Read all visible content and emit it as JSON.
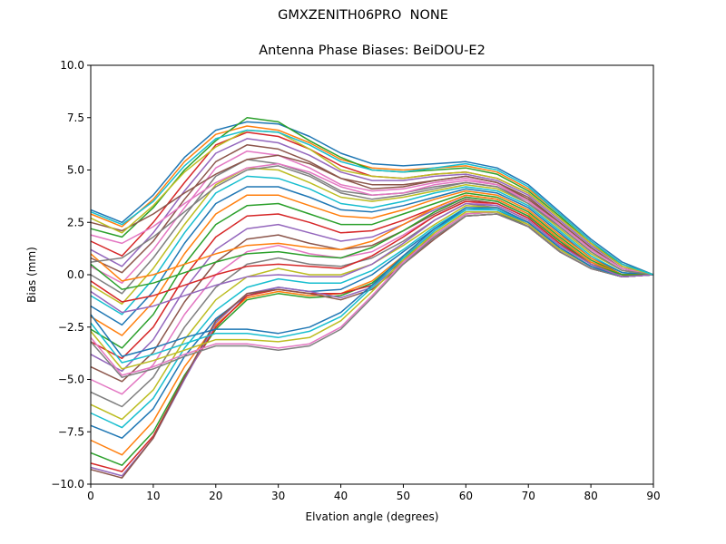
{
  "suptitle": "GMXZENITH06PRO  NONE",
  "chart_data": {
    "type": "line",
    "title": "Antenna Phase Biases: BeiDOU-E2",
    "xlabel": "Elvation angle (degrees)",
    "ylabel": "Bias (mm)",
    "xlim": [
      0,
      90
    ],
    "ylim": [
      -10,
      10
    ],
    "xticks": [
      0,
      10,
      20,
      30,
      40,
      50,
      60,
      70,
      80,
      90
    ],
    "xtick_labels": [
      "0",
      "10",
      "20",
      "30",
      "40",
      "50",
      "60",
      "70",
      "80",
      "90"
    ],
    "yticks": [
      -10,
      -7.5,
      -5,
      -2.5,
      0,
      2.5,
      5,
      7.5,
      10
    ],
    "ytick_labels": [
      "−10.0",
      "−7.5",
      "−5.0",
      "−2.5",
      "0.0",
      "2.5",
      "5.0",
      "7.5",
      "10.0"
    ],
    "grid": false,
    "legend": "none",
    "x": [
      0,
      5,
      10,
      15,
      20,
      25,
      30,
      35,
      40,
      45,
      50,
      55,
      60,
      65,
      70,
      75,
      80,
      85,
      90
    ],
    "series": [
      {
        "color": "#1f77b4",
        "values": [
          3.1,
          2.5,
          3.8,
          5.6,
          6.9,
          7.3,
          7.2,
          6.6,
          5.8,
          5.3,
          5.2,
          5.3,
          5.4,
          5.1,
          4.3,
          3.0,
          1.7,
          0.6,
          0.0
        ]
      },
      {
        "color": "#ff7f0e",
        "values": [
          2.9,
          2.3,
          3.6,
          5.4,
          6.7,
          7.1,
          6.9,
          6.3,
          5.5,
          5.1,
          5.0,
          5.1,
          5.2,
          4.9,
          4.1,
          2.9,
          1.6,
          0.5,
          0.0
        ]
      },
      {
        "color": "#2ca02c",
        "values": [
          2.2,
          1.8,
          3.2,
          5.0,
          6.4,
          7.5,
          7.3,
          6.4,
          5.6,
          5.0,
          4.9,
          5.0,
          5.1,
          4.8,
          4.0,
          2.8,
          1.5,
          0.5,
          0.0
        ]
      },
      {
        "color": "#d62728",
        "values": [
          1.6,
          0.9,
          2.5,
          4.4,
          6.2,
          6.8,
          6.6,
          6.0,
          5.2,
          4.7,
          4.6,
          4.8,
          4.9,
          4.6,
          3.9,
          2.7,
          1.5,
          0.4,
          0.0
        ]
      },
      {
        "color": "#9467bd",
        "values": [
          1.2,
          0.4,
          2.0,
          4.0,
          5.8,
          6.5,
          6.3,
          5.7,
          4.9,
          4.5,
          4.5,
          4.7,
          4.8,
          4.5,
          3.8,
          2.6,
          1.4,
          0.4,
          0.0
        ]
      },
      {
        "color": "#8c564b",
        "values": [
          0.8,
          0.1,
          1.6,
          3.6,
          5.4,
          6.2,
          6.0,
          5.4,
          4.6,
          4.3,
          4.3,
          4.5,
          4.7,
          4.4,
          3.7,
          2.5,
          1.3,
          0.3,
          0.0
        ]
      },
      {
        "color": "#e377c2",
        "values": [
          0.4,
          -0.4,
          1.2,
          3.2,
          5.1,
          5.9,
          5.7,
          5.1,
          4.3,
          4.0,
          4.1,
          4.4,
          4.6,
          4.3,
          3.6,
          2.4,
          1.2,
          0.3,
          0.0
        ]
      },
      {
        "color": "#7f7f7f",
        "values": [
          0.0,
          -0.9,
          0.8,
          2.8,
          4.7,
          5.5,
          5.3,
          4.8,
          4.0,
          3.8,
          3.9,
          4.2,
          4.4,
          4.2,
          3.5,
          2.3,
          1.1,
          0.2,
          0.0
        ]
      },
      {
        "color": "#bcbd22",
        "values": [
          -0.5,
          -1.4,
          0.3,
          2.4,
          4.3,
          5.1,
          5.0,
          4.4,
          3.7,
          3.5,
          3.7,
          4.0,
          4.3,
          4.1,
          3.4,
          2.2,
          1.0,
          0.2,
          0.0
        ]
      },
      {
        "color": "#17becf",
        "values": [
          -1.0,
          -1.9,
          -0.2,
          2.0,
          3.9,
          4.7,
          4.6,
          4.1,
          3.4,
          3.2,
          3.5,
          3.9,
          4.2,
          4.0,
          3.3,
          2.1,
          0.9,
          0.1,
          0.0
        ]
      },
      {
        "color": "#1f77b4",
        "values": [
          -1.5,
          -2.4,
          -0.8,
          1.5,
          3.4,
          4.2,
          4.2,
          3.7,
          3.1,
          3.0,
          3.3,
          3.7,
          4.1,
          3.9,
          3.2,
          2.0,
          0.8,
          0.1,
          0.0
        ]
      },
      {
        "color": "#ff7f0e",
        "values": [
          -2.0,
          -2.9,
          -1.3,
          1.0,
          2.9,
          3.8,
          3.8,
          3.3,
          2.8,
          2.7,
          3.1,
          3.6,
          4.0,
          3.8,
          3.1,
          1.9,
          0.8,
          0.0,
          0.0
        ]
      },
      {
        "color": "#2ca02c",
        "values": [
          -2.6,
          -3.5,
          -1.9,
          0.5,
          2.4,
          3.3,
          3.4,
          2.9,
          2.4,
          2.4,
          2.9,
          3.4,
          3.9,
          3.7,
          3.0,
          1.8,
          0.7,
          0.0,
          0.0
        ]
      },
      {
        "color": "#d62728",
        "values": [
          -3.2,
          -4.0,
          -2.5,
          -0.1,
          1.8,
          2.8,
          2.9,
          2.5,
          2.0,
          2.1,
          2.6,
          3.2,
          3.8,
          3.6,
          2.9,
          1.7,
          0.6,
          0.0,
          0.0
        ]
      },
      {
        "color": "#9467bd",
        "values": [
          -3.8,
          -4.6,
          -3.1,
          -0.7,
          1.2,
          2.2,
          2.4,
          2.0,
          1.6,
          1.8,
          2.4,
          3.1,
          3.7,
          3.5,
          2.8,
          1.6,
          0.6,
          -0.1,
          0.0
        ]
      },
      {
        "color": "#8c564b",
        "values": [
          -4.4,
          -5.1,
          -3.7,
          -1.3,
          0.6,
          1.7,
          1.9,
          1.5,
          1.2,
          1.4,
          2.1,
          2.9,
          3.6,
          3.4,
          2.7,
          1.5,
          0.5,
          -0.1,
          0.0
        ]
      },
      {
        "color": "#e377c2",
        "values": [
          -5.0,
          -5.7,
          -4.3,
          -1.9,
          0.0,
          1.1,
          1.4,
          1.0,
          0.8,
          1.1,
          1.9,
          2.8,
          3.5,
          3.3,
          2.6,
          1.4,
          0.5,
          -0.1,
          0.0
        ]
      },
      {
        "color": "#7f7f7f",
        "values": [
          -5.6,
          -6.3,
          -4.9,
          -2.5,
          -0.6,
          0.5,
          0.8,
          0.5,
          0.4,
          0.8,
          1.6,
          2.6,
          3.4,
          3.2,
          2.5,
          1.3,
          0.4,
          -0.1,
          0.0
        ]
      },
      {
        "color": "#bcbd22",
        "values": [
          -6.2,
          -6.9,
          -5.5,
          -3.1,
          -1.2,
          -0.1,
          0.3,
          0.0,
          0.0,
          0.5,
          1.4,
          2.4,
          3.3,
          3.2,
          2.5,
          1.3,
          0.4,
          -0.1,
          0.0
        ]
      },
      {
        "color": "#17becf",
        "values": [
          -6.6,
          -7.3,
          -5.9,
          -3.5,
          -1.7,
          -0.6,
          -0.2,
          -0.4,
          -0.4,
          0.2,
          1.2,
          2.3,
          3.2,
          3.1,
          2.4,
          1.2,
          0.4,
          -0.1,
          0.0
        ]
      },
      {
        "color": "#1f77b4",
        "values": [
          -7.2,
          -7.8,
          -6.4,
          -3.9,
          -2.1,
          -1.0,
          -0.6,
          -0.8,
          -0.7,
          0.0,
          1.1,
          2.2,
          3.1,
          3.1,
          2.4,
          1.2,
          0.4,
          -0.1,
          0.0
        ]
      },
      {
        "color": "#ff7f0e",
        "values": [
          -7.9,
          -8.6,
          -7.0,
          -4.4,
          -2.4,
          -1.1,
          -0.8,
          -1.0,
          -0.9,
          -0.3,
          0.9,
          2.0,
          3.0,
          3.0,
          2.3,
          1.1,
          0.3,
          -0.1,
          0.0
        ]
      },
      {
        "color": "#2ca02c",
        "values": [
          -8.5,
          -9.1,
          -7.5,
          -4.8,
          -2.6,
          -1.2,
          -0.9,
          -1.1,
          -1.0,
          -0.4,
          0.8,
          1.9,
          2.9,
          3.0,
          2.3,
          1.1,
          0.3,
          -0.1,
          0.0
        ]
      },
      {
        "color": "#d62728",
        "values": [
          -9.0,
          -9.4,
          -7.7,
          -4.9,
          -2.5,
          -1.0,
          -0.7,
          -0.9,
          -0.9,
          -0.5,
          0.7,
          1.8,
          2.8,
          2.9,
          2.3,
          1.1,
          0.3,
          -0.1,
          0.0
        ]
      },
      {
        "color": "#9467bd",
        "values": [
          -9.2,
          -9.6,
          -7.8,
          -5.0,
          -2.3,
          -0.9,
          -0.6,
          -0.8,
          -1.1,
          -0.6,
          0.6,
          1.8,
          2.8,
          2.9,
          2.3,
          1.1,
          0.3,
          -0.1,
          0.0
        ]
      },
      {
        "color": "#8c564b",
        "values": [
          -9.3,
          -9.7,
          -7.8,
          -4.9,
          -2.2,
          -0.9,
          -0.7,
          -0.9,
          -1.2,
          -0.7,
          0.5,
          1.7,
          2.8,
          2.9,
          2.3,
          1.1,
          0.3,
          -0.1,
          0.0
        ]
      },
      {
        "color": "#e377c2",
        "values": [
          -3.0,
          -4.8,
          -4.4,
          -3.8,
          -3.3,
          -3.3,
          -3.5,
          -3.3,
          -2.5,
          -1.0,
          0.6,
          1.9,
          2.9,
          3.0,
          2.4,
          1.2,
          0.4,
          -0.1,
          0.0
        ]
      },
      {
        "color": "#7f7f7f",
        "values": [
          -3.2,
          -4.9,
          -4.5,
          -3.9,
          -3.4,
          -3.4,
          -3.6,
          -3.4,
          -2.6,
          -1.1,
          0.5,
          1.8,
          2.8,
          2.9,
          2.3,
          1.1,
          0.3,
          -0.1,
          0.0
        ]
      },
      {
        "color": "#bcbd22",
        "values": [
          -2.7,
          -4.5,
          -4.1,
          -3.6,
          -3.1,
          -3.1,
          -3.2,
          -3.0,
          -2.2,
          -0.8,
          0.7,
          2.0,
          3.0,
          3.0,
          2.4,
          1.2,
          0.4,
          -0.1,
          0.0
        ]
      },
      {
        "color": "#17becf",
        "values": [
          -2.3,
          -4.2,
          -3.8,
          -3.3,
          -2.8,
          -2.8,
          -3.0,
          -2.7,
          -2.0,
          -0.6,
          0.8,
          2.1,
          3.1,
          3.1,
          2.5,
          1.3,
          0.4,
          -0.1,
          0.0
        ]
      },
      {
        "color": "#1f77b4",
        "values": [
          -1.9,
          -3.9,
          -3.5,
          -3.0,
          -2.6,
          -2.6,
          -2.8,
          -2.5,
          -1.8,
          -0.5,
          0.9,
          2.2,
          3.2,
          3.2,
          2.5,
          1.3,
          0.4,
          -0.1,
          0.0
        ]
      },
      {
        "color": "#ff7f0e",
        "values": [
          1.0,
          -0.3,
          0.0,
          0.5,
          1.0,
          1.4,
          1.5,
          1.3,
          1.2,
          1.6,
          2.4,
          3.2,
          3.8,
          3.6,
          2.9,
          1.7,
          0.6,
          0.0,
          0.0
        ]
      },
      {
        "color": "#2ca02c",
        "values": [
          0.5,
          -0.7,
          -0.4,
          0.1,
          0.6,
          1.0,
          1.1,
          0.9,
          0.8,
          1.3,
          2.1,
          3.0,
          3.7,
          3.5,
          2.8,
          1.6,
          0.5,
          0.0,
          0.0
        ]
      },
      {
        "color": "#d62728",
        "values": [
          -0.3,
          -1.3,
          -1.0,
          -0.5,
          0.0,
          0.4,
          0.5,
          0.4,
          0.3,
          0.9,
          1.8,
          2.8,
          3.5,
          3.4,
          2.7,
          1.5,
          0.5,
          -0.1,
          0.0
        ]
      },
      {
        "color": "#9467bd",
        "values": [
          -0.8,
          -1.8,
          -1.5,
          -1.0,
          -0.5,
          -0.1,
          0.0,
          -0.1,
          -0.1,
          0.5,
          1.5,
          2.6,
          3.4,
          3.3,
          2.6,
          1.4,
          0.5,
          -0.1,
          0.0
        ]
      },
      {
        "color": "#8c564b",
        "values": [
          2.5,
          2.1,
          2.9,
          3.9,
          4.8,
          5.5,
          5.7,
          5.3,
          4.6,
          4.1,
          4.2,
          4.5,
          4.7,
          4.4,
          3.6,
          2.5,
          1.3,
          0.3,
          0.0
        ]
      },
      {
        "color": "#e377c2",
        "values": [
          1.9,
          1.5,
          2.3,
          3.4,
          4.4,
          5.1,
          5.3,
          4.9,
          4.2,
          3.8,
          3.9,
          4.3,
          4.5,
          4.3,
          3.5,
          2.4,
          1.2,
          0.3,
          0.0
        ]
      },
      {
        "color": "#7f7f7f",
        "values": [
          0.6,
          0.8,
          1.8,
          3.0,
          4.2,
          5.0,
          5.2,
          4.7,
          3.9,
          3.6,
          3.8,
          4.1,
          4.4,
          4.2,
          3.4,
          2.3,
          1.1,
          0.2,
          0.0
        ]
      },
      {
        "color": "#bcbd22",
        "values": [
          2.7,
          2.0,
          3.3,
          4.9,
          6.1,
          6.9,
          6.8,
          6.0,
          5.0,
          4.7,
          4.6,
          4.8,
          4.9,
          4.6,
          3.9,
          2.7,
          1.5,
          0.4,
          0.0
        ]
      },
      {
        "color": "#17becf",
        "values": [
          3.0,
          2.4,
          3.5,
          5.2,
          6.5,
          6.9,
          6.8,
          6.2,
          5.4,
          5.0,
          4.9,
          5.1,
          5.3,
          5.0,
          4.2,
          2.9,
          1.6,
          0.5,
          0.0
        ]
      }
    ]
  }
}
